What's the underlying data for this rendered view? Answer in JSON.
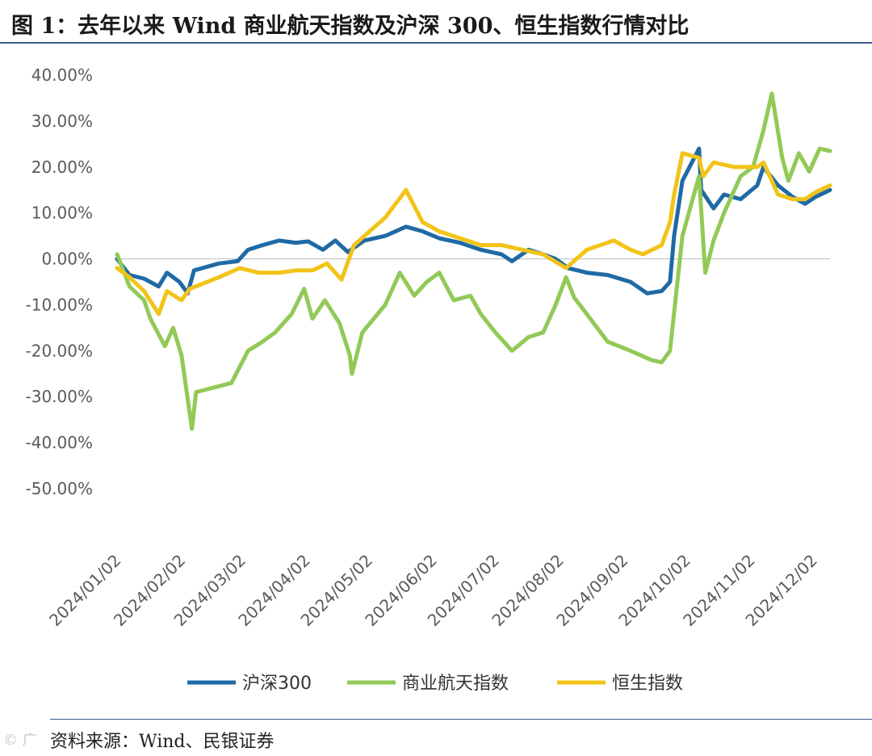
{
  "header": {
    "title": "图 1：去年以来 Wind 商业航天指数及沪深 300、恒生指数行情对比"
  },
  "footer": {
    "source": "资料来源：Wind、民银证券",
    "watermark": "© 广"
  },
  "colors": {
    "csi300": "#1f6aa5",
    "aerospace": "#92c957",
    "hangseng": "#f2c319",
    "zero_line": "#bdbdbd",
    "rule": "#3c5a8c"
  },
  "chart_data": {
    "type": "line",
    "xlabel": "",
    "ylabel": "",
    "y_unit": "%",
    "ylim": [
      -50,
      40
    ],
    "yticks": [
      "40.00%",
      "30.00%",
      "20.00%",
      "10.00%",
      "0.00%",
      "-10.00%",
      "-20.00%",
      "-30.00%",
      "-40.00%",
      "-50.00%"
    ],
    "ytick_values": [
      40,
      30,
      20,
      10,
      0,
      -10,
      -20,
      -30,
      -40,
      -50
    ],
    "xlim": [
      "2024-01-02",
      "2024-12-10"
    ],
    "xticks": [
      "2024/01/02",
      "2024/02/02",
      "2024/03/02",
      "2024/04/02",
      "2024/05/02",
      "2024/06/02",
      "2024/07/02",
      "2024/08/02",
      "2024/09/02",
      "2024/10/02",
      "2024/11/02",
      "2024/12/02"
    ],
    "xtick_dates": [
      "2024-01-02",
      "2024-02-02",
      "2024-03-02",
      "2024-04-02",
      "2024-05-02",
      "2024-06-02",
      "2024-07-02",
      "2024-08-02",
      "2024-09-02",
      "2024-10-02",
      "2024-11-02",
      "2024-12-02"
    ],
    "grid": false,
    "legend_position": "bottom",
    "series": [
      {
        "name": "沪深300",
        "color": "#1f6aa5",
        "points": [
          [
            "2024-01-02",
            0
          ],
          [
            "2024-01-08",
            -3.5
          ],
          [
            "2024-01-15",
            -4.3
          ],
          [
            "2024-01-22",
            -6.0
          ],
          [
            "2024-01-26",
            -3.0
          ],
          [
            "2024-02-01",
            -5.0
          ],
          [
            "2024-02-05",
            -7.5
          ],
          [
            "2024-02-08",
            -2.5
          ],
          [
            "2024-02-20",
            -1.0
          ],
          [
            "2024-02-29",
            -0.5
          ],
          [
            "2024-03-05",
            2.0
          ],
          [
            "2024-03-12",
            3.0
          ],
          [
            "2024-03-20",
            4.0
          ],
          [
            "2024-03-28",
            3.5
          ],
          [
            "2024-04-03",
            3.8
          ],
          [
            "2024-04-10",
            2.0
          ],
          [
            "2024-04-16",
            4.0
          ],
          [
            "2024-04-22",
            1.5
          ],
          [
            "2024-04-30",
            4.0
          ],
          [
            "2024-05-10",
            5.0
          ],
          [
            "2024-05-20",
            7.0
          ],
          [
            "2024-05-28",
            6.0
          ],
          [
            "2024-06-05",
            4.5
          ],
          [
            "2024-06-15",
            3.5
          ],
          [
            "2024-06-25",
            2.0
          ],
          [
            "2024-07-05",
            1.0
          ],
          [
            "2024-07-10",
            -0.5
          ],
          [
            "2024-07-18",
            2.0
          ],
          [
            "2024-07-25",
            1.0
          ],
          [
            "2024-07-31",
            0.0
          ],
          [
            "2024-08-06",
            -2.0
          ],
          [
            "2024-08-15",
            -3.0
          ],
          [
            "2024-08-25",
            -3.5
          ],
          [
            "2024-09-05",
            -5.0
          ],
          [
            "2024-09-13",
            -7.5
          ],
          [
            "2024-09-20",
            -7.0
          ],
          [
            "2024-09-24",
            -5.0
          ],
          [
            "2024-09-26",
            5.0
          ],
          [
            "2024-09-30",
            17.0
          ],
          [
            "2024-10-08",
            24.0
          ],
          [
            "2024-10-09",
            15.0
          ],
          [
            "2024-10-15",
            11.0
          ],
          [
            "2024-10-20",
            14.0
          ],
          [
            "2024-10-28",
            13.0
          ],
          [
            "2024-11-05",
            16.0
          ],
          [
            "2024-11-08",
            20.0
          ],
          [
            "2024-11-15",
            16.0
          ],
          [
            "2024-11-22",
            13.5
          ],
          [
            "2024-11-28",
            12.0
          ],
          [
            "2024-12-03",
            13.5
          ],
          [
            "2024-12-10",
            15.0
          ]
        ]
      },
      {
        "name": "商业航天指数",
        "color": "#92c957",
        "points": [
          [
            "2024-01-02",
            1.0
          ],
          [
            "2024-01-08",
            -6.0
          ],
          [
            "2024-01-15",
            -9.0
          ],
          [
            "2024-01-18",
            -13.0
          ],
          [
            "2024-01-25",
            -19.0
          ],
          [
            "2024-01-29",
            -15.0
          ],
          [
            "2024-02-02",
            -21.0
          ],
          [
            "2024-02-07",
            -37.0
          ],
          [
            "2024-02-09",
            -29.0
          ],
          [
            "2024-02-26",
            -27.0
          ],
          [
            "2024-03-05",
            -20.0
          ],
          [
            "2024-03-12",
            -18.0
          ],
          [
            "2024-03-18",
            -16.0
          ],
          [
            "2024-03-26",
            -12.0
          ],
          [
            "2024-04-01",
            -6.5
          ],
          [
            "2024-04-05",
            -13.0
          ],
          [
            "2024-04-11",
            -9.0
          ],
          [
            "2024-04-18",
            -14.0
          ],
          [
            "2024-04-23",
            -21.0
          ],
          [
            "2024-04-24",
            -25.0
          ],
          [
            "2024-04-29",
            -16.0
          ],
          [
            "2024-05-10",
            -10.0
          ],
          [
            "2024-05-17",
            -3.0
          ],
          [
            "2024-05-24",
            -8.0
          ],
          [
            "2024-05-30",
            -5.0
          ],
          [
            "2024-06-05",
            -3.0
          ],
          [
            "2024-06-12",
            -9.0
          ],
          [
            "2024-06-20",
            -8.0
          ],
          [
            "2024-06-25",
            -12.0
          ],
          [
            "2024-07-02",
            -16.0
          ],
          [
            "2024-07-10",
            -20.0
          ],
          [
            "2024-07-18",
            -17.0
          ],
          [
            "2024-07-25",
            -16.0
          ],
          [
            "2024-07-31",
            -10.0
          ],
          [
            "2024-08-05",
            -4.0
          ],
          [
            "2024-08-09",
            -8.5
          ],
          [
            "2024-08-15",
            -12.0
          ],
          [
            "2024-08-25",
            -18.0
          ],
          [
            "2024-09-05",
            -20.0
          ],
          [
            "2024-09-15",
            -22.0
          ],
          [
            "2024-09-20",
            -22.5
          ],
          [
            "2024-09-24",
            -20.0
          ],
          [
            "2024-09-30",
            5.0
          ],
          [
            "2024-10-08",
            18.0
          ],
          [
            "2024-10-11",
            -3.0
          ],
          [
            "2024-10-15",
            4.0
          ],
          [
            "2024-10-20",
            10.0
          ],
          [
            "2024-10-28",
            18.0
          ],
          [
            "2024-11-03",
            20.0
          ],
          [
            "2024-11-08",
            28.0
          ],
          [
            "2024-11-12",
            36.0
          ],
          [
            "2024-11-17",
            22.0
          ],
          [
            "2024-11-20",
            17.0
          ],
          [
            "2024-11-25",
            23.0
          ],
          [
            "2024-11-30",
            19.0
          ],
          [
            "2024-12-05",
            24.0
          ],
          [
            "2024-12-10",
            23.5
          ]
        ]
      },
      {
        "name": "恒生指数",
        "color": "#f2c319",
        "points": [
          [
            "2024-01-02",
            -2.0
          ],
          [
            "2024-01-08",
            -4.0
          ],
          [
            "2024-01-15",
            -7.0
          ],
          [
            "2024-01-22",
            -12.0
          ],
          [
            "2024-01-26",
            -7.0
          ],
          [
            "2024-02-02",
            -9.0
          ],
          [
            "2024-02-06",
            -6.5
          ],
          [
            "2024-02-20",
            -4.0
          ],
          [
            "2024-03-01",
            -2.0
          ],
          [
            "2024-03-10",
            -3.0
          ],
          [
            "2024-03-20",
            -3.0
          ],
          [
            "2024-03-28",
            -2.5
          ],
          [
            "2024-04-05",
            -2.5
          ],
          [
            "2024-04-12",
            -1.0
          ],
          [
            "2024-04-19",
            -4.5
          ],
          [
            "2024-04-25",
            3.0
          ],
          [
            "2024-04-30",
            5.0
          ],
          [
            "2024-05-10",
            9.0
          ],
          [
            "2024-05-20",
            15.0
          ],
          [
            "2024-05-28",
            8.0
          ],
          [
            "2024-06-05",
            6.0
          ],
          [
            "2024-06-15",
            4.5
          ],
          [
            "2024-06-25",
            3.0
          ],
          [
            "2024-07-05",
            3.0
          ],
          [
            "2024-07-15",
            2.0
          ],
          [
            "2024-07-25",
            1.0
          ],
          [
            "2024-08-05",
            -2.0
          ],
          [
            "2024-08-15",
            2.0
          ],
          [
            "2024-08-28",
            4.0
          ],
          [
            "2024-09-05",
            2.0
          ],
          [
            "2024-09-11",
            1.0
          ],
          [
            "2024-09-20",
            3.0
          ],
          [
            "2024-09-24",
            8.0
          ],
          [
            "2024-09-26",
            14.0
          ],
          [
            "2024-09-30",
            23.0
          ],
          [
            "2024-10-08",
            22.0
          ],
          [
            "2024-10-10",
            18.0
          ],
          [
            "2024-10-15",
            21.0
          ],
          [
            "2024-10-25",
            20.0
          ],
          [
            "2024-11-05",
            20.0
          ],
          [
            "2024-11-08",
            21.0
          ],
          [
            "2024-11-12",
            17.0
          ],
          [
            "2024-11-15",
            14.0
          ],
          [
            "2024-11-22",
            13.0
          ],
          [
            "2024-11-28",
            13.0
          ],
          [
            "2024-12-03",
            14.5
          ],
          [
            "2024-12-10",
            16.0
          ]
        ]
      }
    ]
  }
}
